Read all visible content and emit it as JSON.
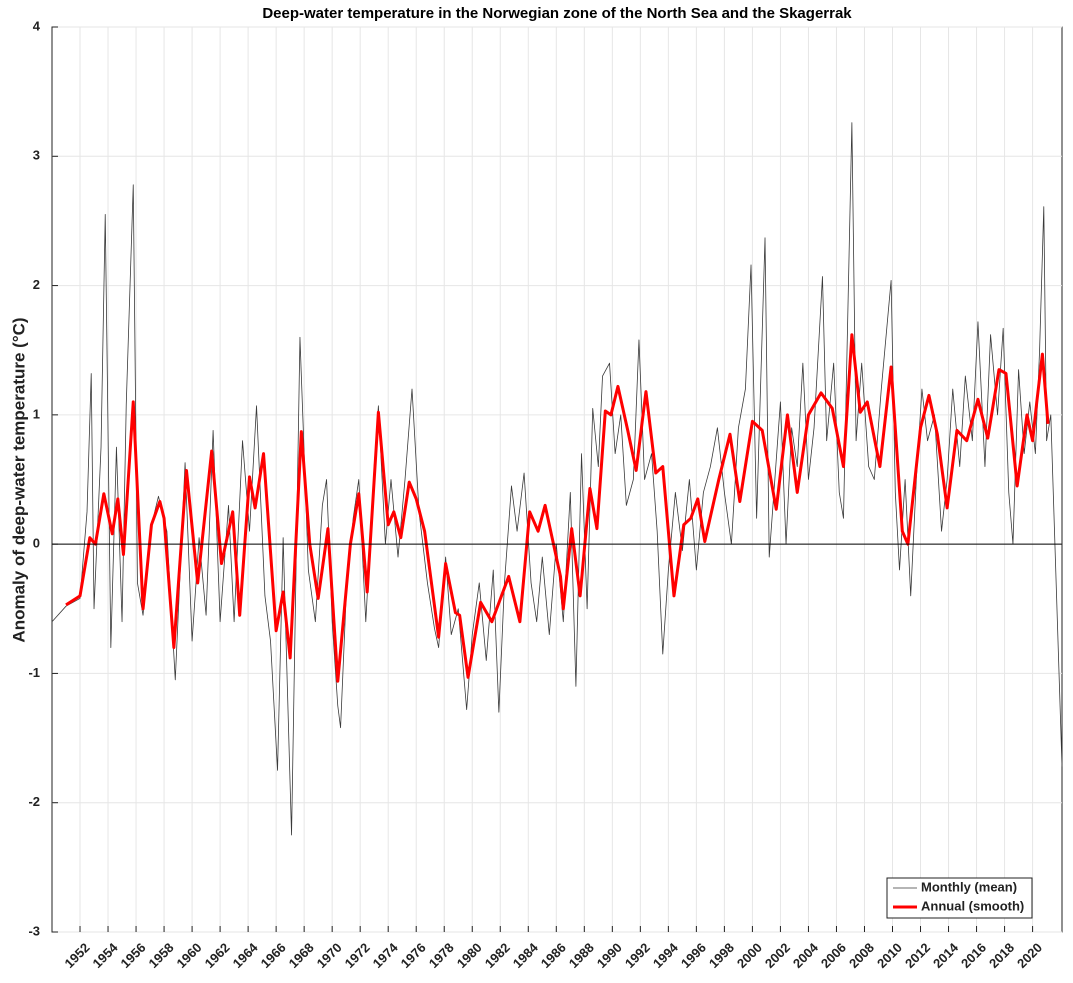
{
  "chart_data": {
    "type": "line",
    "title": "Deep-water temperature in the Norwegian zone of the North Sea and the Skagerrak",
    "y_label": "Anomaly of deep-water temperature (°C)",
    "xlim": [
      1950,
      2022.1
    ],
    "ylim": [
      -3,
      4
    ],
    "yticks": [
      -3,
      -2,
      -1,
      0,
      1,
      2,
      3,
      4
    ],
    "xticks": [
      1952,
      1954,
      1956,
      1958,
      1960,
      1962,
      1964,
      1966,
      1968,
      1970,
      1972,
      1974,
      1976,
      1978,
      1980,
      1982,
      1984,
      1986,
      1988,
      1990,
      1992,
      1994,
      1996,
      1998,
      2000,
      2002,
      2004,
      2006,
      2008,
      2010,
      2012,
      2014,
      2016,
      2018,
      2020
    ],
    "grid": true,
    "legend": "lower right",
    "series": [
      {
        "name": "Monthly (mean)",
        "color": "#3a3a3a",
        "x": [
          1950.0,
          1951.0,
          1952.0,
          1952.5,
          1952.8,
          1953.0,
          1953.5,
          1953.8,
          1954.2,
          1954.6,
          1955.0,
          1955.3,
          1955.8,
          1956.1,
          1956.5,
          1957.0,
          1957.6,
          1958.2,
          1958.8,
          1959.5,
          1960.0,
          1960.5,
          1961.0,
          1961.5,
          1962.0,
          1962.6,
          1963.0,
          1963.6,
          1964.1,
          1964.6,
          1965.2,
          1965.6,
          1966.1,
          1966.5,
          1967.1,
          1967.7,
          1968.3,
          1968.8,
          1969.3,
          1969.6,
          1970.0,
          1970.4,
          1970.6,
          1971.0,
          1971.5,
          1971.9,
          1972.4,
          1973.0,
          1973.3,
          1973.8,
          1974.2,
          1974.7,
          1975.2,
          1975.7,
          1976.2,
          1976.8,
          1977.3,
          1977.6,
          1978.1,
          1978.5,
          1979.0,
          1979.6,
          1980.0,
          1980.5,
          1981.0,
          1981.5,
          1981.9,
          1982.3,
          1982.8,
          1983.2,
          1983.7,
          1984.2,
          1984.6,
          1985.0,
          1985.5,
          1986.0,
          1986.5,
          1987.0,
          1987.4,
          1987.8,
          1988.2,
          1988.6,
          1989.0,
          1989.3,
          1989.8,
          1990.2,
          1990.6,
          1991.0,
          1991.5,
          1991.9,
          1992.3,
          1992.8,
          1993.2,
          1993.6,
          1994.0,
          1994.5,
          1995.0,
          1995.5,
          1996.0,
          1996.5,
          1997.0,
          1997.5,
          1998.0,
          1998.5,
          1999.0,
          1999.5,
          1999.9,
          2000.3,
          2000.9,
          2001.2,
          2001.6,
          2002.0,
          2002.4,
          2002.8,
          2003.2,
          2003.6,
          2004.0,
          2004.4,
          2005.0,
          2005.3,
          2005.8,
          2006.2,
          2006.5,
          2007.1,
          2007.4,
          2007.8,
          2008.3,
          2008.7,
          2009.2,
          2009.9,
          2010.2,
          2010.5,
          2010.9,
          2011.3,
          2011.7,
          2012.1,
          2012.5,
          2013.0,
          2013.5,
          2013.9,
          2014.3,
          2014.8,
          2015.2,
          2015.7,
          2016.1,
          2016.6,
          2017.0,
          2017.5,
          2017.9,
          2018.3,
          2018.6,
          2019.0,
          2019.4,
          2019.8,
          2020.2,
          2020.5,
          2020.8,
          2021.0,
          2021.3,
          2022.1
        ],
        "values": [
          -0.6,
          -0.48,
          -0.42,
          0.25,
          1.32,
          -0.5,
          0.75,
          2.55,
          -0.8,
          0.75,
          -0.6,
          1.08,
          2.78,
          -0.3,
          -0.55,
          0.1,
          0.37,
          0.1,
          -1.05,
          0.63,
          -0.75,
          0.05,
          -0.55,
          0.88,
          -0.6,
          0.3,
          -0.6,
          0.8,
          0.1,
          1.07,
          -0.4,
          -0.75,
          -1.75,
          0.05,
          -2.25,
          1.6,
          -0.2,
          -0.6,
          0.3,
          0.5,
          -0.6,
          -1.25,
          -1.42,
          -0.4,
          0.2,
          0.5,
          -0.6,
          0.6,
          1.07,
          0.0,
          0.5,
          -0.1,
          0.5,
          1.2,
          0.25,
          -0.3,
          -0.65,
          -0.8,
          -0.1,
          -0.7,
          -0.5,
          -1.28,
          -0.7,
          -0.3,
          -0.9,
          -0.2,
          -1.3,
          -0.3,
          0.45,
          0.1,
          0.55,
          -0.3,
          -0.6,
          -0.1,
          -0.7,
          0.0,
          -0.6,
          0.4,
          -1.1,
          0.7,
          -0.5,
          1.05,
          0.6,
          1.3,
          1.4,
          0.7,
          1.0,
          0.3,
          0.5,
          1.58,
          0.5,
          0.7,
          0.1,
          -0.85,
          -0.2,
          0.4,
          -0.05,
          0.5,
          -0.2,
          0.4,
          0.6,
          0.9,
          0.4,
          0.0,
          0.9,
          1.2,
          2.16,
          0.2,
          2.37,
          -0.1,
          0.5,
          1.1,
          0.0,
          0.9,
          0.6,
          1.4,
          0.5,
          0.9,
          2.07,
          0.8,
          1.4,
          0.4,
          0.2,
          3.26,
          0.8,
          1.4,
          0.6,
          0.5,
          1.2,
          2.04,
          0.4,
          -0.2,
          0.5,
          -0.4,
          0.5,
          1.2,
          0.8,
          1.0,
          0.1,
          0.5,
          1.2,
          0.6,
          1.3,
          0.8,
          1.72,
          0.6,
          1.62,
          1.0,
          1.67,
          0.4,
          0.0,
          1.35,
          0.7,
          1.1,
          0.7,
          1.5,
          2.61,
          0.8,
          1.0,
          -1.72
        ]
      },
      {
        "name": "Annual (smooth)",
        "color": "#ff0000",
        "x": [
          1951.0,
          1952.0,
          1952.7,
          1953.1,
          1953.7,
          1954.3,
          1954.7,
          1955.1,
          1955.8,
          1956.5,
          1957.1,
          1957.7,
          1958.0,
          1958.7,
          1959.6,
          1960.4,
          1961.4,
          1962.1,
          1962.9,
          1963.4,
          1964.1,
          1964.5,
          1965.1,
          1966.0,
          1966.5,
          1967.0,
          1967.8,
          1968.4,
          1969.0,
          1969.7,
          1970.4,
          1971.3,
          1971.9,
          1972.5,
          1973.3,
          1974.0,
          1974.4,
          1974.9,
          1975.5,
          1976.0,
          1976.6,
          1977.6,
          1978.1,
          1978.8,
          1979.1,
          1979.7,
          1980.6,
          1981.4,
          1982.6,
          1983.4,
          1984.1,
          1984.7,
          1985.2,
          1986.3,
          1986.5,
          1987.1,
          1987.7,
          1988.4,
          1988.9,
          1989.5,
          1989.9,
          1990.4,
          1991.1,
          1991.7,
          1992.4,
          1993.1,
          1993.6,
          1994.4,
          1995.1,
          1995.6,
          1996.1,
          1996.6,
          1997.6,
          1998.4,
          1999.1,
          2000.0,
          2000.7,
          2001.7,
          2002.5,
          2003.2,
          2004.0,
          2004.9,
          2005.7,
          2006.5,
          2007.1,
          2007.7,
          2008.2,
          2009.1,
          2009.9,
          2010.7,
          2011.1,
          2012.0,
          2012.6,
          2013.2,
          2013.9,
          2014.6,
          2015.3,
          2016.1,
          2016.8,
          2017.6,
          2018.1,
          2018.9,
          2019.6,
          2020.0,
          2020.3,
          2020.7,
          2021.1
        ],
        "values": [
          -0.47,
          -0.4,
          0.05,
          0.0,
          0.39,
          0.08,
          0.35,
          -0.08,
          1.1,
          -0.5,
          0.15,
          0.33,
          0.2,
          -0.8,
          0.57,
          -0.3,
          0.72,
          -0.15,
          0.25,
          -0.55,
          0.52,
          0.28,
          0.7,
          -0.67,
          -0.37,
          -0.88,
          0.87,
          0.0,
          -0.42,
          0.12,
          -1.06,
          0.0,
          0.39,
          -0.37,
          1.02,
          0.15,
          0.25,
          0.05,
          0.48,
          0.35,
          0.1,
          -0.72,
          -0.15,
          -0.53,
          -0.55,
          -1.03,
          -0.45,
          -0.6,
          -0.25,
          -0.6,
          0.25,
          0.1,
          0.3,
          -0.25,
          -0.5,
          0.12,
          -0.4,
          0.43,
          0.12,
          1.03,
          1.0,
          1.22,
          0.88,
          0.57,
          1.18,
          0.55,
          0.6,
          -0.4,
          0.15,
          0.2,
          0.35,
          0.02,
          0.5,
          0.85,
          0.33,
          0.95,
          0.88,
          0.27,
          1.0,
          0.4,
          1.0,
          1.17,
          1.05,
          0.6,
          1.62,
          1.02,
          1.1,
          0.6,
          1.37,
          0.1,
          0.0,
          0.9,
          1.15,
          0.85,
          0.28,
          0.88,
          0.8,
          1.12,
          0.82,
          1.35,
          1.32,
          0.45,
          1.0,
          0.8,
          1.1,
          1.47,
          0.93
        ]
      }
    ]
  }
}
